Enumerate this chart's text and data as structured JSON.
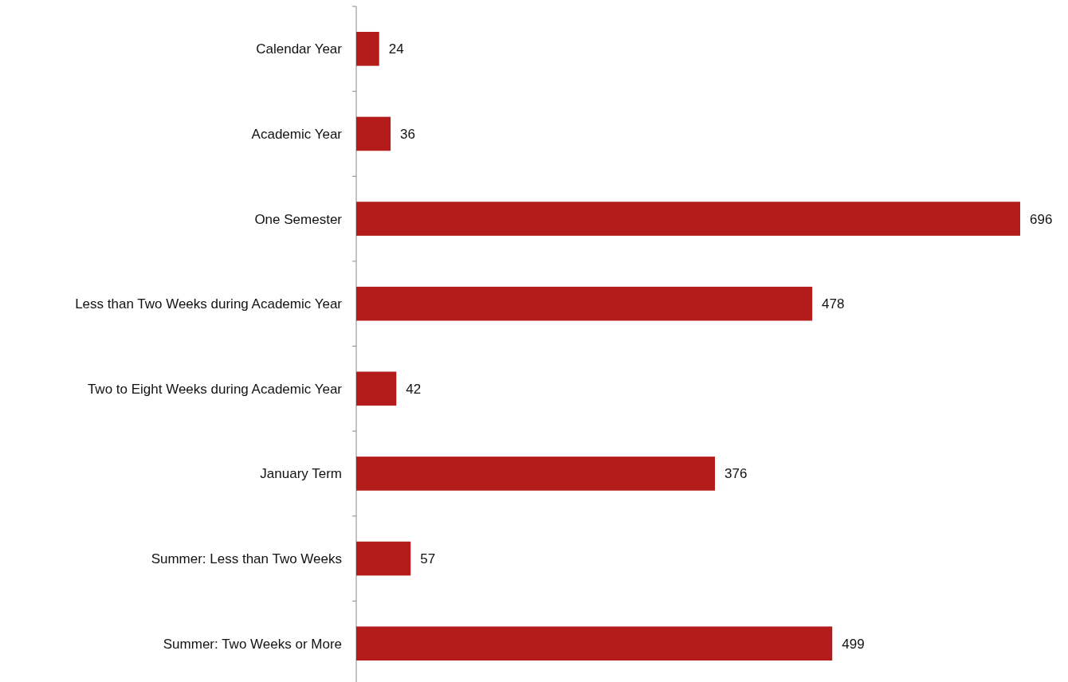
{
  "chart_data": {
    "type": "bar",
    "orientation": "horizontal",
    "categories": [
      "Calendar Year",
      "Academic Year",
      "One Semester",
      "Less than Two Weeks during Academic Year",
      "Two to Eight Weeks during Academic Year",
      "January Term",
      "Summer: Less than Two Weeks",
      "Summer: Two Weeks or More"
    ],
    "values": [
      24,
      36,
      696,
      478,
      42,
      376,
      57,
      499
    ],
    "color": "#b41c1c",
    "data_labels": true
  }
}
